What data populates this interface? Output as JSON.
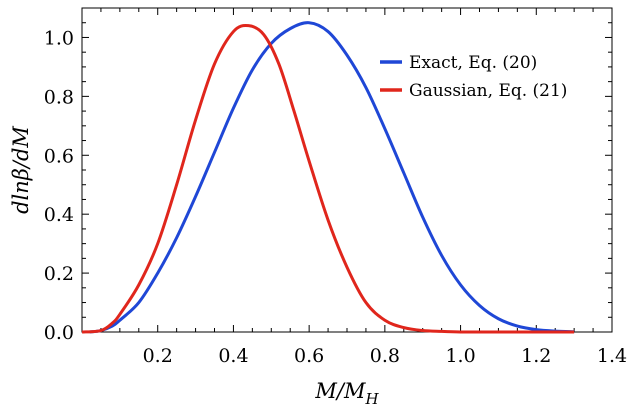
{
  "chart_data": {
    "type": "line",
    "xlabel": "M/M_H",
    "xlabel_main": "M/M",
    "xlabel_sub": "H",
    "ylabel": "dlnβ/dM",
    "xlim": [
      0.0,
      1.4
    ],
    "ylim": [
      0.0,
      1.1
    ],
    "xticks": [
      0.2,
      0.4,
      0.6,
      0.8,
      1.0,
      1.2,
      1.4
    ],
    "xtick_labels": [
      "0.2",
      "0.4",
      "0.6",
      "0.8",
      "1.0",
      "1.2",
      "1.4"
    ],
    "yticks": [
      0.0,
      0.2,
      0.4,
      0.6,
      0.8,
      1.0
    ],
    "ytick_labels": [
      "0.0",
      "0.2",
      "0.4",
      "0.6",
      "0.8",
      "1.0"
    ],
    "grid": false,
    "legend_position": "top-right",
    "series": [
      {
        "name": "Exact, Eq. (20)",
        "color": "#1f47d6",
        "x": [
          0.02,
          0.05,
          0.08,
          0.1,
          0.15,
          0.2,
          0.25,
          0.3,
          0.35,
          0.4,
          0.45,
          0.5,
          0.55,
          0.6,
          0.65,
          0.7,
          0.75,
          0.8,
          0.85,
          0.9,
          0.95,
          1.0,
          1.05,
          1.1,
          1.15,
          1.2,
          1.25,
          1.3
        ],
        "y": [
          0.0,
          0.005,
          0.02,
          0.04,
          0.1,
          0.2,
          0.32,
          0.46,
          0.61,
          0.76,
          0.89,
          0.98,
          1.03,
          1.05,
          1.02,
          0.94,
          0.83,
          0.69,
          0.54,
          0.39,
          0.26,
          0.16,
          0.09,
          0.045,
          0.02,
          0.008,
          0.003,
          0.001
        ]
      },
      {
        "name": "Gaussian, Eq. (21)",
        "color": "#e0261c",
        "x": [
          0.0,
          0.05,
          0.08,
          0.1,
          0.15,
          0.2,
          0.25,
          0.3,
          0.35,
          0.4,
          0.44,
          0.48,
          0.52,
          0.56,
          0.6,
          0.65,
          0.7,
          0.75,
          0.8,
          0.85,
          0.9,
          0.95,
          1.0,
          1.05,
          1.1,
          1.2,
          1.3
        ],
        "y": [
          0.0,
          0.005,
          0.03,
          0.06,
          0.16,
          0.3,
          0.5,
          0.72,
          0.91,
          1.02,
          1.04,
          1.01,
          0.91,
          0.75,
          0.58,
          0.38,
          0.22,
          0.1,
          0.04,
          0.015,
          0.005,
          0.002,
          0.0,
          0.0,
          0.0,
          0.0,
          0.0
        ]
      }
    ]
  }
}
